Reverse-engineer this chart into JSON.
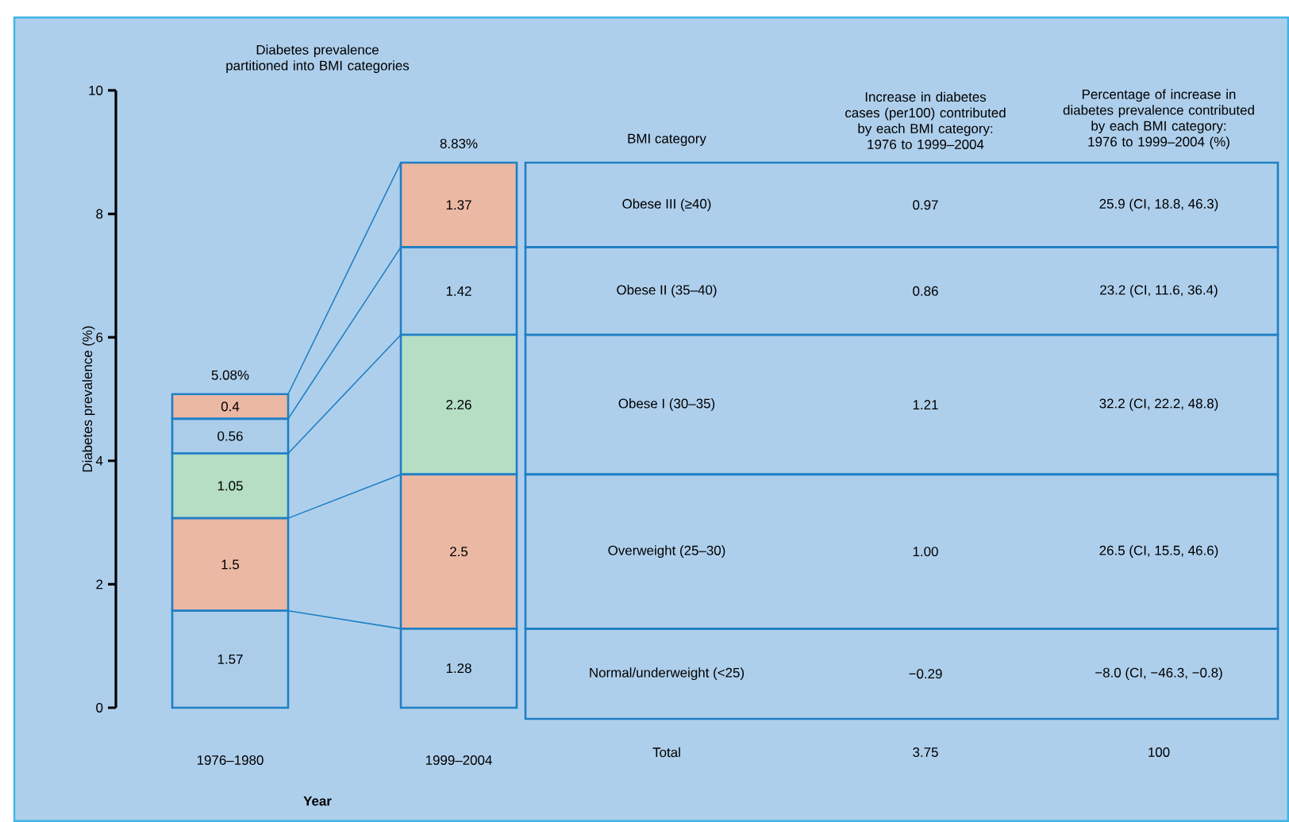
{
  "chart_data": {
    "type": "bar",
    "stacked": true,
    "title": "Diabetes prevalence partitioned into BMI categories",
    "xlabel": "Year",
    "ylabel": "Diabetes prevalence (%)",
    "categories": [
      "1976–1980",
      "1999–2004"
    ],
    "series": [
      {
        "name": "Normal/underweight (<25)",
        "color": "#abcdea",
        "values": [
          1.57,
          1.28
        ]
      },
      {
        "name": "Overweight (25–30)",
        "color": "#ebb8a4",
        "values": [
          1.5,
          2.5
        ]
      },
      {
        "name": "Obese I (30–35)",
        "color": "#b5dec5",
        "values": [
          1.05,
          2.26
        ]
      },
      {
        "name": "Obese II (35–40)",
        "color": "#abcdea",
        "values": [
          0.56,
          1.42
        ]
      },
      {
        "name": "Obese III (≥40)",
        "color": "#ebb8a4",
        "values": [
          0.4,
          1.37
        ]
      }
    ],
    "ylim": [
      0,
      10
    ],
    "yticks": [
      0,
      2,
      4,
      6,
      8,
      10
    ],
    "data_labels": true,
    "totals": [
      "5.08%",
      "8.83%"
    ],
    "annotations": [
      "BMI category",
      "Increase in diabetes cases (per100) contributed by each BMI category: 1976 to 1999–2004",
      "Percentage of increase in diabetes prevalence contributed by each BMI category: 1976 to 1999–2004 (%)",
      "0.97",
      "25.9 (CI, 18.8, 46.3)",
      "0.86",
      "23.2 (CI, 11.6, 36.4)",
      "1.21",
      "32.2 (CI, 22.2, 48.8)",
      "1.00",
      "26.5 (CI, 15.5, 46.6)",
      "−0.29",
      "−8.0 (CI, −46.3, −0.8)",
      "Total",
      "3.75",
      "100"
    ]
  }
}
